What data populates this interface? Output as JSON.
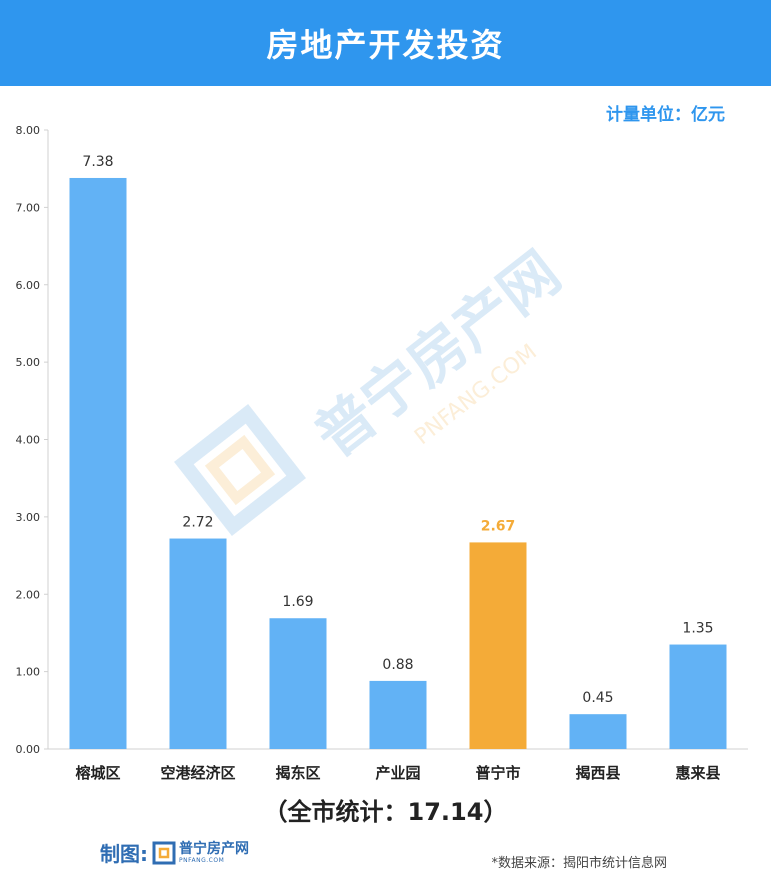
{
  "header": {
    "title": "房地产开发投资"
  },
  "unit_label": "计量单位：亿元",
  "total_label": "（全市统计：17.14）",
  "footer": {
    "maker_label": "制图:",
    "maker_brand": "普宁房产网",
    "maker_url": "PNFANG.COM",
    "source": "*数据来源：揭阳市统计信息网"
  },
  "watermark": {
    "text": "普宁房产网",
    "url": "PNFANG.COM"
  },
  "colors": {
    "header": "#2f96ee",
    "bar": "#62b2f5",
    "highlight": "#f4ab38",
    "axis": "#d0d0d0"
  },
  "chart_data": {
    "type": "bar",
    "title": "房地产开发投资",
    "categories": [
      "榕城区",
      "空港经济区",
      "揭东区",
      "产业园",
      "普宁市",
      "揭西县",
      "惠来县"
    ],
    "values": [
      7.38,
      2.72,
      1.69,
      0.88,
      2.67,
      0.45,
      1.35
    ],
    "data_labels": [
      "7.38",
      "2.72",
      "1.69",
      "0.88",
      "2.67",
      "0.45",
      "1.35"
    ],
    "highlight_index": 4,
    "ylim": [
      0,
      8
    ],
    "yticks": [
      0,
      1,
      2,
      3,
      4,
      5,
      6,
      7,
      8
    ],
    "ytick_labels": [
      "0.00",
      "1.00",
      "2.00",
      "3.00",
      "4.00",
      "5.00",
      "6.00",
      "7.00",
      "8.00"
    ],
    "grid": false,
    "legend": "none"
  }
}
